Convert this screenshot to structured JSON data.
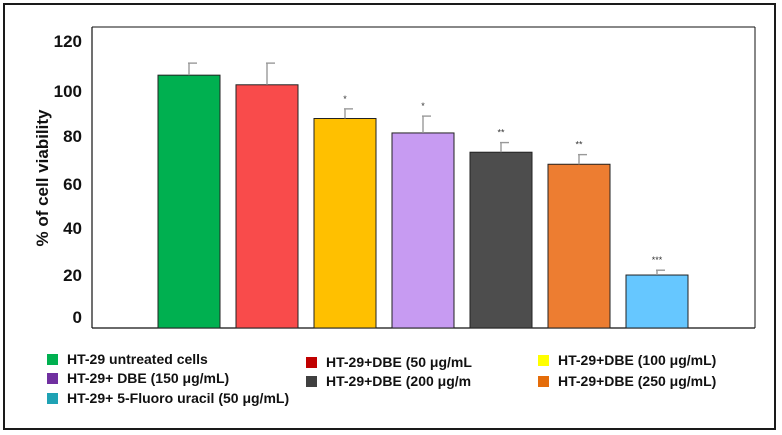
{
  "chart_data": {
    "type": "bar",
    "title": "",
    "xlabel": "",
    "ylabel": "% of cell viability",
    "ylim": [
      0,
      125
    ],
    "yticks": [
      "0",
      "20",
      "40",
      "60",
      "80",
      "100",
      "120"
    ],
    "categories": [
      "HT-29 untreated cells",
      "HT-29+DBE (50 μg/mL)",
      "HT-29+DBE (100 μg/mL)",
      "HT-29+ DBE (150 μg/mL)",
      "HT-29+DBE (200 μg/mL)",
      "HT-29+DBE (250 μg/mL)",
      "HT-29+ 5-Fluoro uracil (50 μg/mL)"
    ],
    "values": [
      105,
      101,
      87,
      81,
      73,
      68,
      22
    ],
    "errors": [
      5,
      9,
      4,
      7,
      4,
      4,
      2
    ],
    "significance": [
      "",
      "",
      "*",
      "*",
      "**",
      "**",
      "***"
    ],
    "colors": [
      "#00b050",
      "#f94b4b",
      "#ffc000",
      "#c79bf2",
      "#4d4d4d",
      "#ed7d31",
      "#66c7ff"
    ]
  },
  "legend": {
    "items": [
      {
        "label": "HT-29 untreated cells",
        "color": "#00b050"
      },
      {
        "label": "HT-29+DBE (50 μg/mL",
        "color": "#c00000"
      },
      {
        "label": "HT-29+DBE (100 μg/mL)",
        "color": "#ffff00"
      },
      {
        "label": "HT-29+ DBE (150 μg/mL)",
        "color": "#7030a0"
      },
      {
        "label": "HT-29+DBE (200 μg/m",
        "color": "#404040"
      },
      {
        "label": "HT-29+DBE (250 μg/mL)",
        "color": "#e46c0a"
      },
      {
        "label": "HT-29+ 5-Fluoro uracil (50 μg/mL)",
        "color": "#1fa2b4"
      }
    ]
  }
}
